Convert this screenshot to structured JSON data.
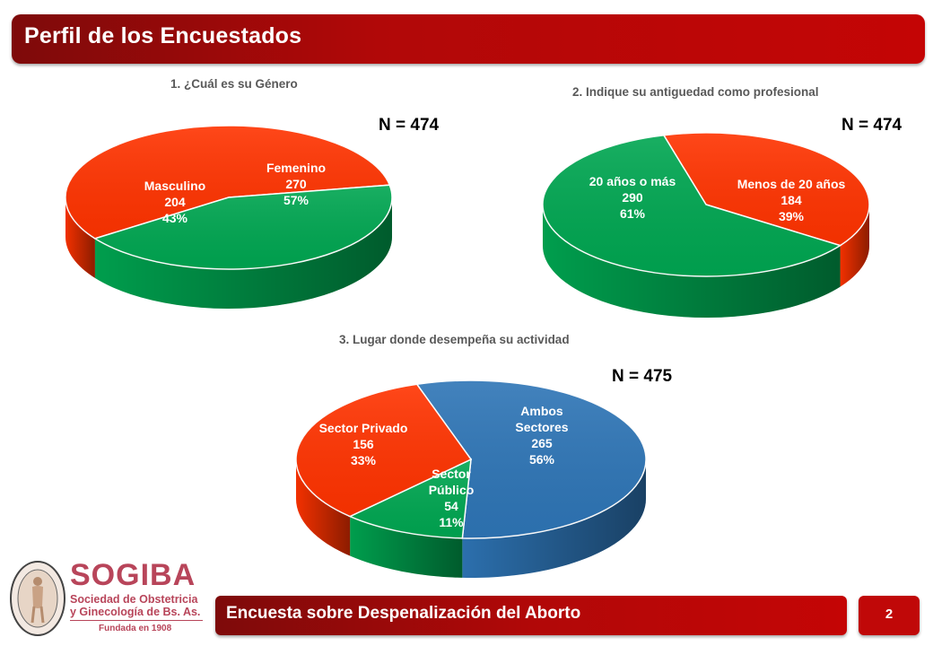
{
  "header": {
    "title": "Perfil de los Encuestados"
  },
  "chart_data": [
    {
      "type": "pie",
      "title": "1. ¿Cuál es su Género",
      "n_label": "N = 474",
      "slices": [
        {
          "name": "Femenino",
          "value": 270,
          "percent": "57%",
          "color": "#ff3300"
        },
        {
          "name": "Masculino",
          "value": 204,
          "percent": "43%",
          "color": "#00a651"
        }
      ]
    },
    {
      "type": "pie",
      "title": "2. Indique su antiguedad como profesional",
      "n_label": "N = 474",
      "slices": [
        {
          "name": "Menos de 20 años",
          "value": 184,
          "percent": "39%",
          "color": "#ff3300"
        },
        {
          "name": "20 años o más",
          "value": 290,
          "percent": "61%",
          "color": "#00a651"
        }
      ]
    },
    {
      "type": "pie",
      "title": "3. Lugar donde desempeña su actividad",
      "n_label": "N = 475",
      "slices": [
        {
          "name": "Ambos Sectores",
          "label_lines": [
            "Ambos",
            "Sectores"
          ],
          "value": 265,
          "percent": "56%",
          "color": "#2e75b6"
        },
        {
          "name": "Sector Público",
          "label_lines": [
            "Sector",
            "Público"
          ],
          "value": 54,
          "percent": "11%",
          "color": "#00a651"
        },
        {
          "name": "Sector Privado",
          "label_lines": [
            "Sector Privado"
          ],
          "value": 156,
          "percent": "33%",
          "color": "#ff3300"
        }
      ]
    }
  ],
  "footer": {
    "title": "Encuesta sobre Despenalización del Aborto",
    "page": "2"
  },
  "logo": {
    "name": "SOGIBA",
    "line1": "Sociedad de Obstetricia",
    "line2": "y Ginecología de Bs. As.",
    "founded": "Fundada en 1908"
  }
}
